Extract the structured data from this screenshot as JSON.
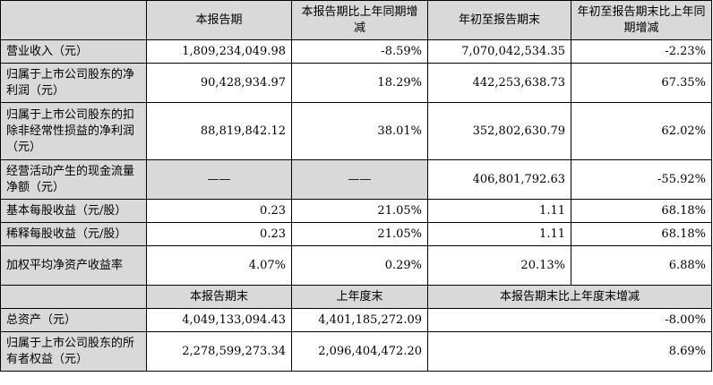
{
  "headers_top": [
    "",
    "本报告期",
    "本报告期比上年同期增减",
    "年初至报告期末",
    "年初至报告期末比上年同期增减"
  ],
  "rows_top": [
    {
      "label": "营业收入（元）",
      "current": "1,809,234,049.98",
      "change": "-8.59%",
      "ytd": "7,070,042,534.35",
      "ytd_change": "-2.23%"
    },
    {
      "label": "归属于上市公司股东的净利润（元）",
      "current": "90,428,934.97",
      "change": "18.29%",
      "ytd": "442,253,638.73",
      "ytd_change": "67.35%"
    },
    {
      "label": "归属于上市公司股东的扣除非经常性损益的净利润（元）",
      "current": "88,819,842.12",
      "change": "38.01%",
      "ytd": "352,802,630.79",
      "ytd_change": "62.02%"
    },
    {
      "label": "经营活动产生的现金流量净额（元）",
      "current": "——",
      "change": "——",
      "ytd": "406,801,792.63",
      "ytd_change": "-55.92%"
    },
    {
      "label": "基本每股收益（元/股）",
      "current": "0.23",
      "change": "21.05%",
      "ytd": "1.11",
      "ytd_change": "68.18%"
    },
    {
      "label": "稀释每股收益（元/股）",
      "current": "0.23",
      "change": "21.05%",
      "ytd": "1.11",
      "ytd_change": "68.18%"
    },
    {
      "label": "加权平均净资产收益率",
      "current": "4.07%",
      "change": "0.29%",
      "ytd": "20.13%",
      "ytd_change": "6.88%"
    }
  ],
  "headers_bottom": [
    "",
    "本报告期末",
    "上年度末",
    "本报告期末比上年度末增减"
  ],
  "rows_bottom": [
    {
      "label": "总资产（元）",
      "period_end": "4,049,133,094.43",
      "prev_year_end": "4,401,185,272.09",
      "change": "-8.00%"
    },
    {
      "label": "归属于上市公司股东的所有者权益（元）",
      "period_end": "2,278,599,273.34",
      "prev_year_end": "2,096,404,472.20",
      "change": "8.69%"
    }
  ]
}
